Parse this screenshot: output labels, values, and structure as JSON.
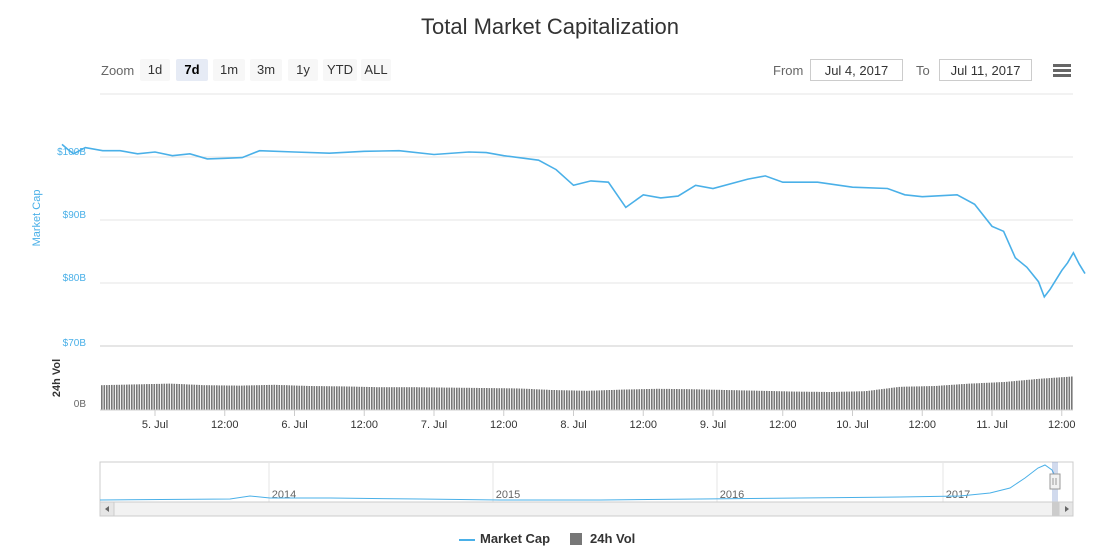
{
  "title": "Total Market Capitalization",
  "range_selector": {
    "zoom_label": "Zoom",
    "buttons": [
      "1d",
      "7d",
      "1m",
      "3m",
      "1y",
      "YTD",
      "ALL"
    ],
    "active": "7d",
    "from_label": "From",
    "from_value": "Jul 4, 2017",
    "to_label": "To",
    "to_value": "Jul 11, 2017"
  },
  "colors": {
    "market_cap": "#4ab0e8",
    "volume": "#777777"
  },
  "icons": {
    "menu": "hamburger-menu-icon",
    "scroll_left": "scroll-left-arrow-icon",
    "scroll_right": "scroll-right-arrow-icon",
    "navigator_handle": "navigator-handle-icon"
  },
  "legend": [
    {
      "name": "Market Cap",
      "icon": "line"
    },
    {
      "name": "24h Vol",
      "icon": "box"
    }
  ],
  "chart_data": {
    "type": "line",
    "title": "Total Market Capitalization",
    "x_tick_labels": [
      "5. Jul",
      "12:00",
      "6. Jul",
      "12:00",
      "7. Jul",
      "12:00",
      "8. Jul",
      "12:00",
      "9. Jul",
      "12:00",
      "10. Jul",
      "12:00",
      "11. Jul",
      "12:00"
    ],
    "market_cap": {
      "name": "Market Cap",
      "ylabel": "Market Cap",
      "y_tick_labels": [
        "$70B",
        "$80B",
        "$90B",
        "$100B"
      ],
      "ylim": [
        70,
        105
      ],
      "unit": "billions USD",
      "points": [
        [
          "Jul 4 08:00",
          102.0
        ],
        [
          "Jul 4 09:00",
          101.2
        ],
        [
          "Jul 4 10:00",
          100.5
        ],
        [
          "Jul 4 12:00",
          101.5
        ],
        [
          "Jul 4 15:00",
          101.0
        ],
        [
          "Jul 4 18:00",
          101.0
        ],
        [
          "Jul 4 21:00",
          100.5
        ],
        [
          "Jul 5 00:00",
          100.8
        ],
        [
          "Jul 5 03:00",
          100.2
        ],
        [
          "Jul 5 06:00",
          100.5
        ],
        [
          "Jul 5 09:00",
          99.7
        ],
        [
          "Jul 5 12:00",
          99.8
        ],
        [
          "Jul 5 15:00",
          99.9
        ],
        [
          "Jul 5 18:00",
          101.0
        ],
        [
          "Jul 6 00:00",
          100.8
        ],
        [
          "Jul 6 06:00",
          100.6
        ],
        [
          "Jul 6 12:00",
          100.9
        ],
        [
          "Jul 6 18:00",
          101.0
        ],
        [
          "Jul 7 00:00",
          100.4
        ],
        [
          "Jul 7 06:00",
          100.8
        ],
        [
          "Jul 7 09:00",
          100.7
        ],
        [
          "Jul 7 12:00",
          100.2
        ],
        [
          "Jul 7 18:00",
          99.5
        ],
        [
          "Jul 7 21:00",
          98.0
        ],
        [
          "Jul 8 00:00",
          95.5
        ],
        [
          "Jul 8 03:00",
          96.2
        ],
        [
          "Jul 8 06:00",
          96.0
        ],
        [
          "Jul 8 09:00",
          92.0
        ],
        [
          "Jul 8 12:00",
          94.0
        ],
        [
          "Jul 8 15:00",
          93.5
        ],
        [
          "Jul 8 18:00",
          93.8
        ],
        [
          "Jul 8 21:00",
          95.5
        ],
        [
          "Jul 9 00:00",
          95.0
        ],
        [
          "Jul 9 06:00",
          96.5
        ],
        [
          "Jul 9 09:00",
          97.0
        ],
        [
          "Jul 9 12:00",
          96.0
        ],
        [
          "Jul 9 18:00",
          96.0
        ],
        [
          "Jul 10 00:00",
          95.2
        ],
        [
          "Jul 10 06:00",
          95.0
        ],
        [
          "Jul 10 09:00",
          94.0
        ],
        [
          "Jul 10 12:00",
          93.7
        ],
        [
          "Jul 10 18:00",
          94.0
        ],
        [
          "Jul 10 21:00",
          92.5
        ],
        [
          "Jul 11 00:00",
          89.0
        ],
        [
          "Jul 11 02:00",
          88.2
        ],
        [
          "Jul 11 04:00",
          84.0
        ],
        [
          "Jul 11 06:00",
          82.5
        ],
        [
          "Jul 11 08:00",
          80.2
        ],
        [
          "Jul 11 09:00",
          77.8
        ],
        [
          "Jul 11 10:00",
          79.0
        ],
        [
          "Jul 11 11:00",
          80.5
        ],
        [
          "Jul 11 12:00",
          82.0
        ],
        [
          "Jul 11 13:00",
          83.2
        ],
        [
          "Jul 11 14:00",
          84.8
        ],
        [
          "Jul 11 15:00",
          83.0
        ],
        [
          "Jul 11 16:00",
          81.5
        ]
      ]
    },
    "volume": {
      "name": "24h Vol",
      "ylabel": "24h Vol",
      "y_tick_labels": [
        "0B"
      ],
      "relative_levels": [
        0.62,
        0.64,
        0.66,
        0.62,
        0.61,
        0.63,
        0.6,
        0.59,
        0.57,
        0.57,
        0.56,
        0.55,
        0.54,
        0.5,
        0.48,
        0.51,
        0.53,
        0.52,
        0.5,
        0.48,
        0.46,
        0.45,
        0.47,
        0.58,
        0.6,
        0.66,
        0.7,
        0.78,
        0.84
      ]
    },
    "navigator": {
      "tick_labels": [
        "2014",
        "2015",
        "2016",
        "2017"
      ]
    },
    "grid": true,
    "legend_position": "bottom-center"
  }
}
